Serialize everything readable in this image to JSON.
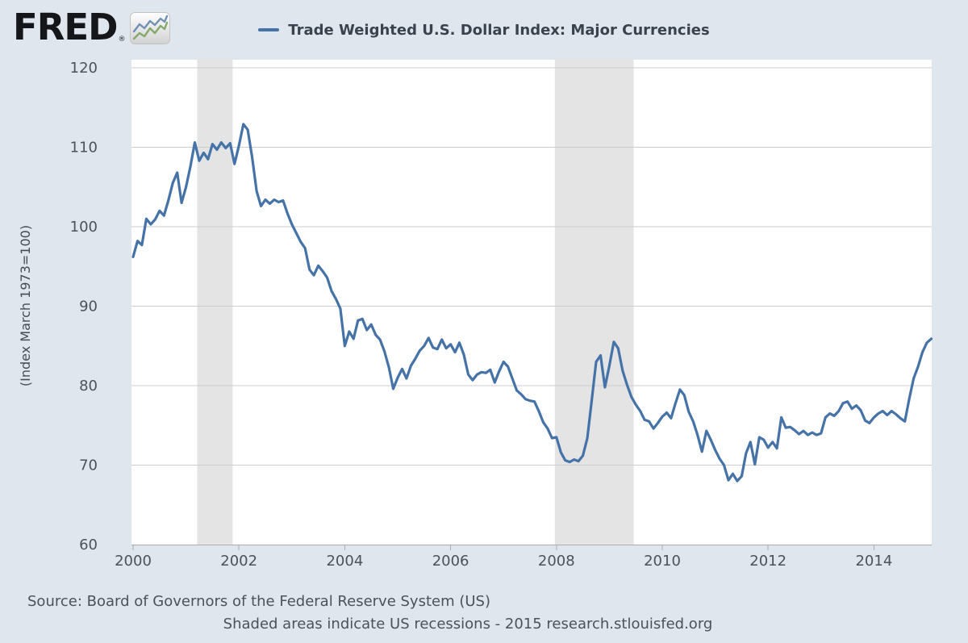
{
  "page": {
    "background": "#dfe6ee"
  },
  "logo": {
    "text": "FRED",
    "registered": "®",
    "icon": "sparkline-chart-icon",
    "icon_colors": {
      "blue_line": "#7191b4",
      "green_line": "#85a86b"
    }
  },
  "legend": {
    "label": "Trade Weighted U.S. Dollar Index: Major Currencies",
    "line_color": "#4572a7"
  },
  "footer": {
    "source": "Source: Board of Governors of the Federal Reserve System (US)",
    "note": "Shaded areas indicate US recessions - 2015 research.stlouisfed.org"
  },
  "colors": {
    "plot_background": "#ffffff",
    "gridline": "#cdcdcd",
    "axis_line": "#a9adb2",
    "recession_band": "#e4e4e4",
    "tick_label": "#4b525a",
    "series_line": "#4572a7"
  },
  "chart_data": {
    "type": "line",
    "title": "Trade Weighted U.S. Dollar Index: Major Currencies",
    "series_name": "Trade Weighted U.S. Dollar Index: Major Currencies",
    "xlabel": "",
    "ylabel": "(Index March 1973=100)",
    "grid": true,
    "legend_position": "top-center",
    "line_color": "#4572a7",
    "start_year": 2000,
    "frequency": "monthly",
    "xlim": [
      2000,
      2015.09
    ],
    "ylim": [
      60,
      121.2
    ],
    "x_ticks": [
      2000,
      2002,
      2004,
      2006,
      2008,
      2010,
      2012,
      2014
    ],
    "y_ticks": [
      60,
      70,
      80,
      90,
      100,
      110,
      120
    ],
    "recessions": [
      [
        2001.21,
        2001.88
      ],
      [
        2007.97,
        2009.46
      ]
    ],
    "recession_note": "Shaded areas indicate US recessions",
    "values": [
      96.2,
      98.2,
      97.7,
      101.0,
      100.3,
      100.9,
      102.0,
      101.4,
      103.3,
      105.5,
      106.8,
      103.0,
      105.0,
      107.6,
      110.6,
      108.3,
      109.3,
      108.5,
      110.4,
      109.7,
      110.6,
      109.9,
      110.5,
      107.9,
      110.2,
      112.9,
      112.2,
      108.7,
      104.5,
      102.6,
      103.4,
      102.9,
      103.4,
      103.1,
      103.3,
      101.7,
      100.3,
      99.2,
      98.1,
      97.3,
      94.6,
      93.9,
      95.1,
      94.4,
      93.6,
      91.9,
      90.9,
      89.7,
      85.0,
      86.8,
      85.9,
      88.2,
      88.4,
      87.0,
      87.7,
      86.4,
      85.8,
      84.3,
      82.3,
      79.6,
      81.0,
      82.1,
      80.9,
      82.5,
      83.4,
      84.4,
      85.0,
      86.0,
      84.8,
      84.6,
      85.8,
      84.7,
      85.2,
      84.2,
      85.4,
      83.9,
      81.4,
      80.7,
      81.4,
      81.7,
      81.6,
      82.0,
      80.4,
      81.8,
      83.0,
      82.4,
      80.9,
      79.4,
      78.9,
      78.3,
      78.1,
      78.0,
      76.8,
      75.4,
      74.6,
      73.4,
      73.5,
      71.6,
      70.6,
      70.4,
      70.7,
      70.5,
      71.2,
      73.4,
      78.1,
      83.0,
      83.8,
      79.8,
      82.5,
      85.5,
      84.7,
      81.9,
      80.1,
      78.6,
      77.6,
      76.8,
      75.7,
      75.5,
      74.6,
      75.3,
      76.1,
      76.6,
      75.9,
      77.8,
      79.5,
      78.8,
      76.7,
      75.5,
      73.8,
      71.7,
      74.3,
      73.2,
      71.9,
      70.8,
      70.0,
      68.1,
      68.9,
      68.0,
      68.6,
      71.5,
      72.9,
      70.1,
      73.5,
      73.2,
      72.2,
      72.9,
      72.1,
      76.0,
      74.7,
      74.8,
      74.4,
      73.9,
      74.3,
      73.8,
      74.1,
      73.8,
      74.0,
      76.0,
      76.5,
      76.2,
      76.8,
      77.8,
      78.0,
      77.1,
      77.5,
      76.9,
      75.6,
      75.3,
      76.0,
      76.5,
      76.8,
      76.3,
      76.8,
      76.4,
      75.9,
      75.5,
      78.3,
      80.9,
      82.4,
      84.2,
      85.4,
      85.9
    ]
  }
}
